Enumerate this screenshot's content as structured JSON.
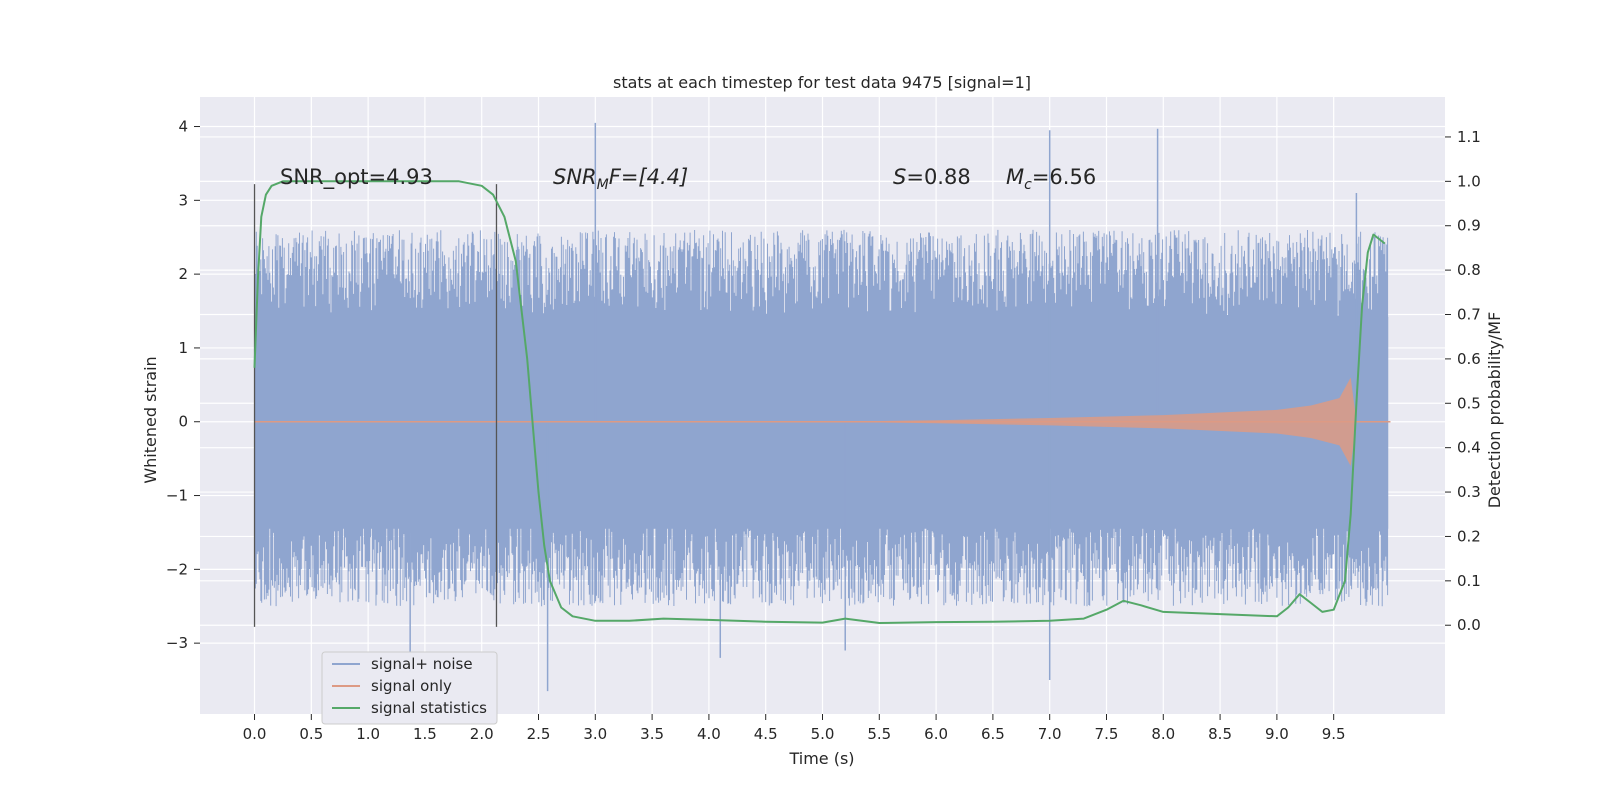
{
  "chart_data": {
    "type": "line",
    "title": "stats at each timestep for test data 9475 [signal=1]",
    "xlabel": "Time (s)",
    "ylabel_left": "Whitened strain",
    "ylabel_right": "Detection probability/MF",
    "xlim": [
      -0.48,
      10.48
    ],
    "ylim_left": [
      -3.96,
      4.4
    ],
    "ylim_right": [
      -0.2,
      1.19
    ],
    "xticks": [
      "0.0",
      "0.5",
      "1.0",
      "1.5",
      "2.0",
      "2.5",
      "3.0",
      "3.5",
      "4.0",
      "4.5",
      "5.0",
      "5.5",
      "6.0",
      "6.5",
      "7.0",
      "7.5",
      "8.0",
      "8.5",
      "9.0",
      "9.5"
    ],
    "yticks_left": [
      "4",
      "3",
      "2",
      "1",
      "0",
      "−1",
      "−2",
      "−3"
    ],
    "yticks_right": [
      "1.1",
      "1.0",
      "0.9",
      "0.8",
      "0.7",
      "0.6",
      "0.5",
      "0.4",
      "0.3",
      "0.2",
      "0.1",
      "0.0"
    ],
    "grid": true,
    "legend_position": "lower-left",
    "annotations": {
      "snr_opt": "SNR_opt=4.93",
      "snr_mf_main": "SNR",
      "snr_mf_sub": "M",
      "snr_mf_rest": "F=[4.4]",
      "s_main": "S",
      "s_rest": "=0.88",
      "mc_main": "M",
      "mc_sub": "c",
      "mc_rest": "=6.56"
    },
    "vlines_x": [
      0.0,
      2.13
    ],
    "series": [
      {
        "name": "signal+ noise",
        "color": "#8fa5cf",
        "x_range": [
          0.0,
          9.98
        ],
        "core_band": [
          -1.45,
          1.42
        ],
        "outer_envelope": [
          -2.5,
          2.6
        ],
        "extremes": [
          [
            1.37,
            -3.4
          ],
          [
            2.58,
            -3.65
          ],
          [
            3.0,
            4.05
          ],
          [
            4.1,
            -3.2
          ],
          [
            5.2,
            -3.1
          ],
          [
            7.0,
            -3.5
          ],
          [
            7.0,
            3.95
          ],
          [
            7.95,
            3.97
          ],
          [
            9.7,
            3.1
          ]
        ]
      },
      {
        "name": "signal only",
        "color": "#dd9a84",
        "x": [
          0.0,
          5.0,
          6.0,
          7.0,
          8.0,
          9.0,
          9.3,
          9.55,
          9.65,
          9.7,
          10.0
        ],
        "amplitude": [
          0.0,
          0.0,
          0.02,
          0.05,
          0.09,
          0.16,
          0.22,
          0.32,
          0.6,
          0.0,
          0.0
        ]
      },
      {
        "name": "signal statistics",
        "color": "#55a868",
        "x": [
          0.0,
          0.03,
          0.06,
          0.1,
          0.15,
          0.25,
          0.5,
          1.0,
          1.5,
          1.8,
          2.0,
          2.1,
          2.2,
          2.3,
          2.4,
          2.45,
          2.5,
          2.55,
          2.6,
          2.7,
          2.8,
          3.0,
          3.3,
          3.6,
          4.0,
          4.5,
          5.0,
          5.2,
          5.5,
          6.0,
          6.5,
          7.0,
          7.3,
          7.5,
          7.65,
          7.8,
          8.0,
          8.5,
          9.0,
          9.1,
          9.2,
          9.3,
          9.4,
          9.5,
          9.6,
          9.65,
          9.7,
          9.75,
          9.8,
          9.85,
          9.9,
          9.95
        ],
        "y": [
          0.58,
          0.78,
          0.92,
          0.97,
          0.99,
          1.0,
          1.0,
          1.0,
          1.0,
          1.0,
          0.99,
          0.97,
          0.92,
          0.82,
          0.6,
          0.45,
          0.3,
          0.18,
          0.1,
          0.04,
          0.02,
          0.01,
          0.01,
          0.015,
          0.012,
          0.008,
          0.006,
          0.015,
          0.005,
          0.007,
          0.008,
          0.01,
          0.015,
          0.035,
          0.055,
          0.045,
          0.03,
          0.025,
          0.02,
          0.04,
          0.07,
          0.05,
          0.03,
          0.035,
          0.1,
          0.25,
          0.5,
          0.72,
          0.84,
          0.88,
          0.87,
          0.86
        ]
      }
    ]
  }
}
